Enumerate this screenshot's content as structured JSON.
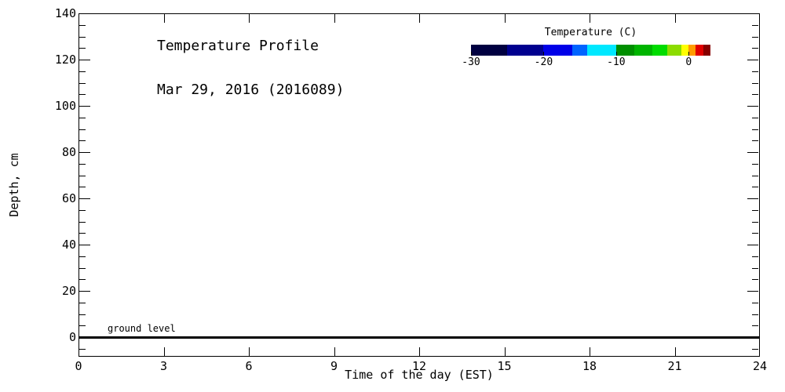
{
  "figure": {
    "title_line1": "Temperature Profile",
    "title_line2": "Mar 29, 2016 (2016089)",
    "ground_label": "ground level"
  },
  "chart_data": {
    "type": "heatmap",
    "title": "Temperature Profile",
    "subtitle": "Mar 29, 2016 (2016089)",
    "date_shown": "Mar 29, 2016",
    "day_of_year_code": "2016089",
    "xlabel": "Time of the day (EST)",
    "ylabel": "Depth, cm",
    "xlim": [
      0,
      24
    ],
    "ylim": [
      -8.5,
      140
    ],
    "x_ticks": [
      0,
      3,
      6,
      9,
      12,
      15,
      18,
      21,
      24
    ],
    "y_ticks": [
      0,
      20,
      40,
      60,
      80,
      100,
      120,
      140
    ],
    "y_minor_step": 5,
    "y_minor_min": -5,
    "grid": false,
    "values": [],
    "note_visible_data": "plot area is empty except ground level line at depth 0",
    "ground_line_y": 0,
    "annotations": [
      {
        "text": "ground level",
        "y": 0
      }
    ],
    "colorbar": {
      "label": "Temperature (C)",
      "range": [
        -30,
        3
      ],
      "ticks": [
        -30,
        -20,
        -10,
        0
      ],
      "levels": [
        -30,
        -25,
        -20,
        -16,
        -14,
        -10,
        -7.5,
        -5,
        -3,
        -1,
        0,
        1,
        2,
        3
      ],
      "colors": [
        "#000041",
        "#00008F",
        "#0000E8",
        "#0064FF",
        "#00E8FF",
        "#008F00",
        "#00B400",
        "#00DC00",
        "#8CDC00",
        "#FFFF00",
        "#FF9B00",
        "#E10000",
        "#870000"
      ]
    },
    "frame_color": "#000000",
    "background_color": "#FFFFFF"
  }
}
